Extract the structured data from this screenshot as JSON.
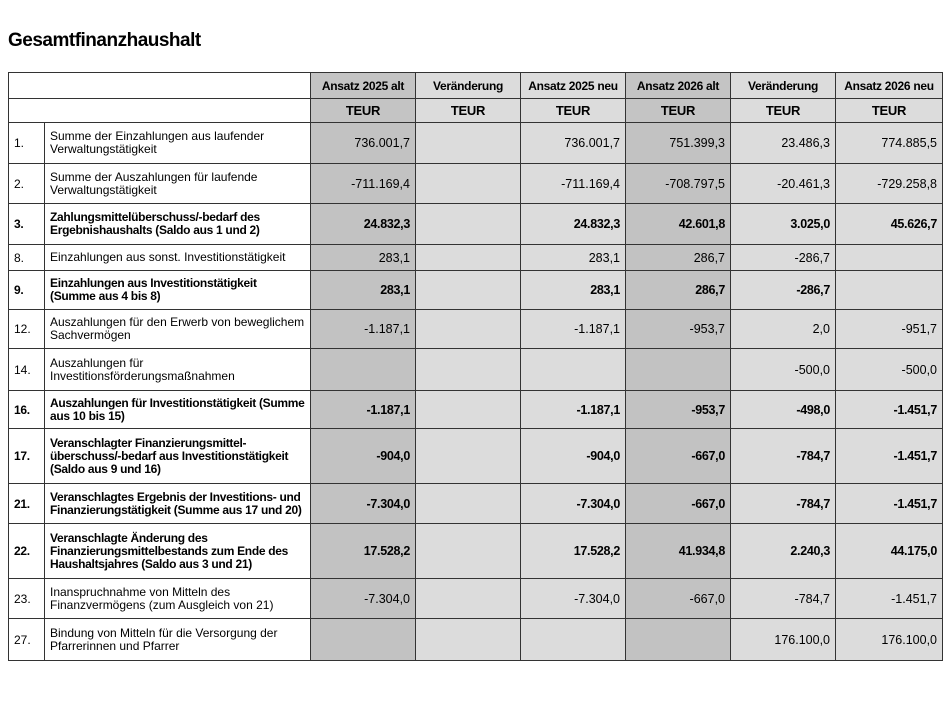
{
  "title": "Gesamtfinanzhaushalt",
  "columns": [
    "Ansatz 2025 alt",
    "Veränderung",
    "Ansatz 2025 neu",
    "Ansatz 2026 alt",
    "Veränderung",
    "Ansatz 2026 neu"
  ],
  "unit": "TEUR",
  "rows": [
    {
      "no": "1.",
      "desc": "Summe der Einzahlungen aus laufender Verwaltungstätigkeit",
      "bold": false,
      "values": [
        "736.001,7",
        "",
        "736.001,7",
        "751.399,3",
        "23.486,3",
        "774.885,5"
      ]
    },
    {
      "no": "2.",
      "desc": "Summe der Auszahlungen für laufende Verwaltungstätigkeit",
      "bold": false,
      "values": [
        "-711.169,4",
        "",
        "-711.169,4",
        "-708.797,5",
        "-20.461,3",
        "-729.258,8"
      ]
    },
    {
      "no": "3.",
      "desc": "Zahlungsmittelüberschuss/-bedarf des Ergebnishaushalts (Saldo aus 1 und 2)",
      "bold": true,
      "values": [
        "24.832,3",
        "",
        "24.832,3",
        "42.601,8",
        "3.025,0",
        "45.626,7"
      ]
    },
    {
      "no": "8.",
      "desc": "Einzahlungen aus sonst. Investitionstätigkeit",
      "bold": false,
      "values": [
        "283,1",
        "",
        "283,1",
        "286,7",
        "-286,7",
        ""
      ]
    },
    {
      "no": "9.",
      "desc": "Einzahlungen aus Investitionstätigkeit (Summe aus 4 bis 8)",
      "bold": true,
      "values": [
        "283,1",
        "",
        "283,1",
        "286,7",
        "-286,7",
        ""
      ]
    },
    {
      "no": "12.",
      "desc": "Auszahlungen für den Erwerb von beweglichem Sachvermögen",
      "bold": false,
      "values": [
        "-1.187,1",
        "",
        "-1.187,1",
        "-953,7",
        "2,0",
        "-951,7"
      ]
    },
    {
      "no": "14.",
      "desc": "Auszahlungen für Investitionsförderungsmaßnahmen",
      "bold": false,
      "values": [
        "",
        "",
        "",
        "",
        "-500,0",
        "-500,0"
      ]
    },
    {
      "no": "16.",
      "desc": "Auszahlungen für Investitionstätigkeit (Summe aus 10 bis 15)",
      "bold": true,
      "values": [
        "-1.187,1",
        "",
        "-1.187,1",
        "-953,7",
        "-498,0",
        "-1.451,7"
      ]
    },
    {
      "no": "17.",
      "desc": "Veranschlagter Finanzierungsmittel-überschuss/-bedarf aus Investitionstätigkeit (Saldo aus 9 und 16)",
      "bold": true,
      "values": [
        "-904,0",
        "",
        "-904,0",
        "-667,0",
        "-784,7",
        "-1.451,7"
      ]
    },
    {
      "no": "21.",
      "desc": "Veranschlagtes Ergebnis der Investitions- und Finanzierungstätigkeit (Summe aus 17 und 20)",
      "bold": true,
      "values": [
        "-7.304,0",
        "",
        "-7.304,0",
        "-667,0",
        "-784,7",
        "-1.451,7"
      ]
    },
    {
      "no": "22.",
      "desc": "Veranschlagte Änderung des Finanzierungsmittelbestands zum Ende des Haushaltsjahres (Saldo aus 3 und 21)",
      "bold": true,
      "values": [
        "17.528,2",
        "",
        "17.528,2",
        "41.934,8",
        "2.240,3",
        "44.175,0"
      ]
    },
    {
      "no": "23.",
      "desc": "Inanspruchnahme von Mitteln des Finanzvermögens (zum Ausgleich von 21)",
      "bold": false,
      "values": [
        "-7.304,0",
        "",
        "-7.304,0",
        "-667,0",
        "-784,7",
        "-1.451,7"
      ]
    },
    {
      "no": "27.",
      "desc": "Bindung von Mitteln für die Versorgung der Pfarrerinnen und Pfarrer",
      "bold": false,
      "values": [
        "",
        "",
        "",
        "",
        "176.100,0",
        "176.100,0"
      ]
    }
  ]
}
